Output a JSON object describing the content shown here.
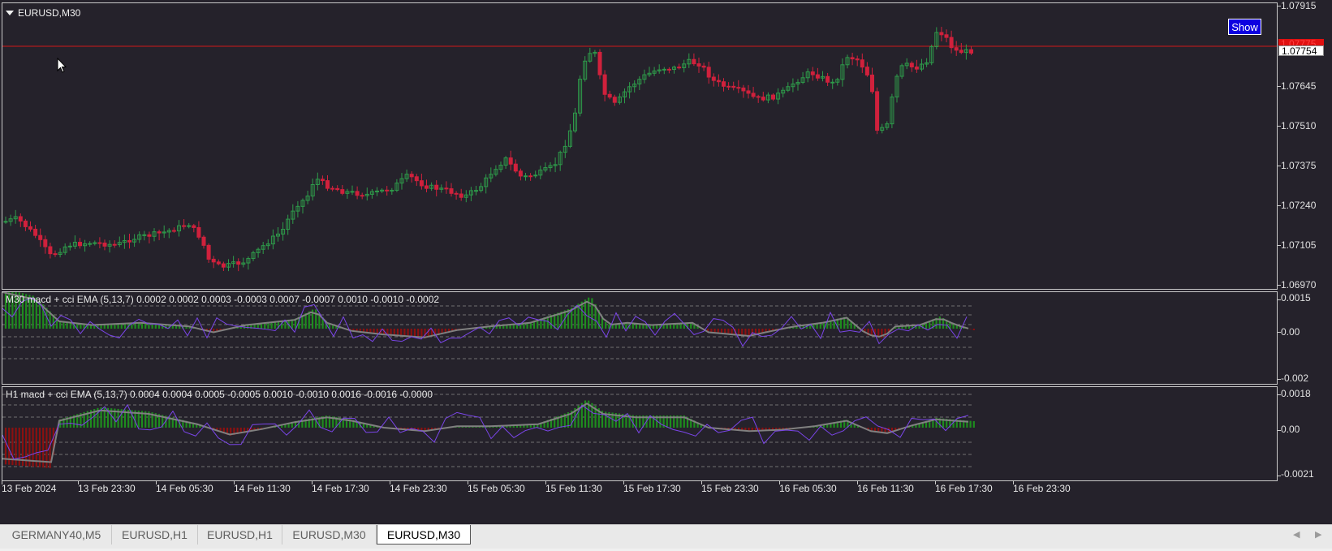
{
  "main_pane": {
    "title": "EURUSD,M30",
    "show_button_label": "Show",
    "price_ticks": [
      "1.07915",
      "1.07645",
      "1.07510",
      "1.07375",
      "1.07240",
      "1.07105",
      "1.06970"
    ],
    "ask_badge": "1.07775",
    "bid_badge": "1.07754"
  },
  "indicator_m30": {
    "title": "M30 macd + cci EMA (5,13,7) 0.0002 0.0002 0.0003 -0.0003 0.0007 -0.0007 0.0010 -0.0010 -0.0002",
    "scale_ticks": [
      "0.0015",
      "0.00",
      "-0.002"
    ]
  },
  "indicator_h1": {
    "title": "H1 macd + cci EMA (5,13,7) 0.0004 0.0004 0.0005 -0.0005 0.0010 -0.0010 0.0016 -0.0016 -0.0000",
    "scale_ticks": [
      "0.0018",
      "0.00",
      "-0.0021"
    ]
  },
  "time_axis": {
    "labels": [
      "13 Feb 2024",
      "13 Feb 23:30",
      "14 Feb 05:30",
      "14 Feb 11:30",
      "14 Feb 17:30",
      "14 Feb 23:30",
      "15 Feb 05:30",
      "15 Feb 11:30",
      "15 Feb 17:30",
      "15 Feb 23:30",
      "16 Feb 05:30",
      "16 Feb 11:30",
      "16 Feb 17:30",
      "16 Feb 23:30"
    ]
  },
  "tabs": [
    {
      "label": "GERMANY40,M5"
    },
    {
      "label": "EURUSD,H1"
    },
    {
      "label": "EURUSD,H1"
    },
    {
      "label": "EURUSD,M30"
    },
    {
      "label": "EURUSD,M30",
      "active": true
    }
  ],
  "colors": {
    "background": "#25222b",
    "bull_candle": "#2e9a4a",
    "bear_candle": "#d0213c",
    "price_line": "#d01818",
    "macd_positive": "#1e8c1e",
    "macd_negative": "#8c1010",
    "cci_line": "#7a45e8",
    "signal_line": "#808080",
    "show_button": "#0d00e0"
  },
  "icons": [
    "mouse-cursor-icon",
    "collapse-triangle-icon",
    "scroll-left-icon",
    "scroll-right-icon"
  ]
}
